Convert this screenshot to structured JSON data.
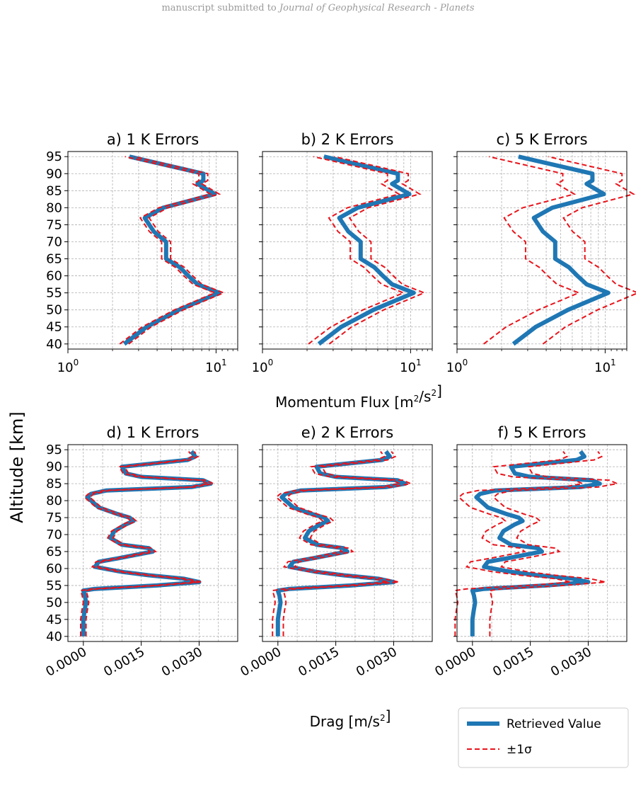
{
  "header": {
    "prefix": "manuscript submitted to ",
    "journal": "Journal of Geophysical Research - Planets"
  },
  "colors": {
    "retrieved": "#1f77b4",
    "sigma": "#e8141b",
    "grid": "#b0b0b0"
  },
  "figure": {
    "ylabel": "Altitude [km]",
    "top_xlabel": "Momentum Flux [m²/s²]",
    "bottom_xlabel": "Drag [m/s²]",
    "legend": {
      "retrieved": "Retrieved Value",
      "sigma": "±1σ",
      "placement": "lower-right"
    }
  },
  "chart_data": [
    {
      "type": "line",
      "panel": "a",
      "title": "a) 1 K Errors",
      "xscale": "log",
      "xlim": [
        1,
        14
      ],
      "xticks": [
        1,
        10
      ],
      "xticklabels": [
        "10^0",
        "10^1"
      ],
      "ylim": [
        38.5,
        96.5
      ],
      "yticks": [
        40,
        45,
        50,
        55,
        60,
        65,
        70,
        75,
        80,
        85,
        90,
        95
      ],
      "grid": true,
      "y": [
        40,
        45,
        50,
        55,
        57.5,
        60,
        62.5,
        65,
        70,
        73,
        77,
        80,
        84,
        87,
        88,
        90,
        95
      ],
      "retrieved": [
        2.4,
        3.4,
        5.6,
        10.5,
        7.5,
        6.5,
        5.7,
        4.6,
        4.6,
        3.8,
        3.3,
        4.4,
        9.8,
        7.5,
        8.2,
        8.2,
        2.6
      ],
      "sigma_spread": 0.03
    },
    {
      "type": "line",
      "panel": "b",
      "title": "b) 2 K Errors",
      "xscale": "log",
      "xlim": [
        1,
        14
      ],
      "xticks": [
        1,
        10
      ],
      "xticklabels": [
        "10^0",
        "10^1"
      ],
      "ylim": [
        38.5,
        96.5
      ],
      "yticks": [
        40,
        45,
        50,
        55,
        60,
        65,
        70,
        75,
        80,
        85,
        90,
        95
      ],
      "grid": true,
      "y": [
        40,
        45,
        50,
        55,
        57.5,
        60,
        62.5,
        65,
        70,
        73,
        77,
        80,
        84,
        87,
        88,
        90,
        95
      ],
      "retrieved": [
        2.4,
        3.4,
        5.6,
        10.5,
        7.5,
        6.5,
        5.7,
        4.6,
        4.6,
        3.8,
        3.3,
        4.4,
        9.8,
        7.5,
        8.2,
        8.2,
        2.6
      ],
      "sigma_spread": 0.07
    },
    {
      "type": "line",
      "panel": "c",
      "title": "c) 5 K Errors",
      "xscale": "log",
      "xlim": [
        1,
        14
      ],
      "xticks": [
        1,
        10
      ],
      "xticklabels": [
        "10^0",
        "10^1"
      ],
      "ylim": [
        38.5,
        96.5
      ],
      "yticks": [
        40,
        45,
        50,
        55,
        60,
        65,
        70,
        75,
        80,
        85,
        90,
        95
      ],
      "grid": true,
      "y": [
        40,
        45,
        50,
        55,
        57.5,
        60,
        62.5,
        65,
        70,
        73,
        77,
        80,
        84,
        87,
        88,
        90,
        95
      ],
      "retrieved": [
        2.4,
        3.4,
        5.6,
        10.5,
        7.5,
        6.5,
        5.7,
        4.6,
        4.6,
        3.8,
        3.3,
        4.4,
        9.8,
        7.5,
        8.2,
        8.2,
        2.6
      ],
      "sigma_spread": 0.2
    },
    {
      "type": "line",
      "panel": "d",
      "title": "d) 1 K Errors",
      "xscale": "linear",
      "xlim": [
        -0.0004,
        0.004
      ],
      "xticks": [
        0,
        0.0015,
        0.003
      ],
      "xticklabels": [
        "0.0000",
        "0.0015",
        "0.0030"
      ],
      "ylim": [
        38.5,
        96.5
      ],
      "yticks": [
        40,
        45,
        50,
        55,
        60,
        65,
        70,
        75,
        80,
        85,
        90,
        95
      ],
      "grid": true,
      "y": [
        40,
        45,
        47.5,
        50,
        52,
        53.5,
        54,
        55,
        56,
        57,
        58,
        59,
        60.5,
        62,
        63,
        65,
        66,
        67,
        69,
        71,
        73,
        74,
        75,
        76,
        78,
        79,
        81,
        82,
        83,
        84,
        85,
        86,
        87,
        88,
        90,
        92,
        93,
        94.5
      ],
      "retrieved": [
        0,
        0,
        3e-05,
        7e-05,
        4e-05,
        0,
        0.0003,
        0.0019,
        0.003,
        0.0026,
        0.0017,
        0.001,
        0.0003,
        0.0004,
        0.0009,
        0.0018,
        0.0017,
        0.001,
        0.0007,
        0.0008,
        0.0011,
        0.0013,
        0.0012,
        0.0009,
        0.0004,
        0.0003,
        0.0001,
        0.0002,
        0.0006,
        0.0028,
        0.0033,
        0.0031,
        0.0015,
        0.0011,
        0.001,
        0.0027,
        0.0029,
        0.0028
      ],
      "sigma_spread": 7e-05
    },
    {
      "type": "line",
      "panel": "e",
      "title": "e) 2 K Errors",
      "xscale": "linear",
      "xlim": [
        -0.0004,
        0.004
      ],
      "xticks": [
        0,
        0.0015,
        0.003
      ],
      "xticklabels": [
        "0.0000",
        "0.0015",
        "0.0030"
      ],
      "ylim": [
        38.5,
        96.5
      ],
      "yticks": [
        40,
        45,
        50,
        55,
        60,
        65,
        70,
        75,
        80,
        85,
        90,
        95
      ],
      "grid": true,
      "y": [
        40,
        45,
        47.5,
        50,
        52,
        53.5,
        54,
        55,
        56,
        57,
        58,
        59,
        60.5,
        62,
        63,
        65,
        66,
        67,
        69,
        71,
        73,
        74,
        75,
        76,
        78,
        79,
        81,
        82,
        83,
        84,
        85,
        86,
        87,
        88,
        90,
        92,
        93,
        94.5
      ],
      "retrieved": [
        0,
        0,
        3e-05,
        7e-05,
        4e-05,
        0,
        0.0003,
        0.0019,
        0.003,
        0.0026,
        0.0017,
        0.001,
        0.0003,
        0.0004,
        0.0009,
        0.0018,
        0.0017,
        0.001,
        0.0007,
        0.0008,
        0.0011,
        0.0013,
        0.0012,
        0.0009,
        0.0004,
        0.0003,
        0.0001,
        0.0002,
        0.0006,
        0.0028,
        0.0033,
        0.0031,
        0.0015,
        0.0011,
        0.001,
        0.0027,
        0.0029,
        0.0028
      ],
      "sigma_spread": 0.00014
    },
    {
      "type": "line",
      "panel": "f",
      "title": "f) 5 K Errors",
      "xscale": "linear",
      "xlim": [
        -0.0004,
        0.004
      ],
      "xticks": [
        0,
        0.0015,
        0.003
      ],
      "xticklabels": [
        "0.0000",
        "0.0015",
        "0.0030"
      ],
      "ylim": [
        38.5,
        96.5
      ],
      "yticks": [
        40,
        45,
        50,
        55,
        60,
        65,
        70,
        75,
        80,
        85,
        90,
        95
      ],
      "grid": true,
      "y": [
        40,
        45,
        47.5,
        50,
        52,
        53.5,
        54,
        55,
        56,
        57,
        58,
        59,
        60.5,
        62,
        63,
        65,
        66,
        67,
        69,
        71,
        73,
        74,
        75,
        76,
        78,
        79,
        81,
        82,
        83,
        84,
        85,
        86,
        87,
        88,
        90,
        92,
        93,
        94.5
      ],
      "retrieved": [
        0,
        0,
        3e-05,
        7e-05,
        4e-05,
        0,
        0.0003,
        0.0019,
        0.003,
        0.0026,
        0.0017,
        0.001,
        0.0003,
        0.0004,
        0.0009,
        0.0018,
        0.0017,
        0.001,
        0.0007,
        0.0008,
        0.0011,
        0.0013,
        0.0012,
        0.0009,
        0.0004,
        0.0003,
        0.0001,
        0.0002,
        0.0006,
        0.0028,
        0.0033,
        0.0031,
        0.0015,
        0.0011,
        0.001,
        0.0027,
        0.0029,
        0.0028
      ],
      "sigma_spread": 0.00045
    }
  ]
}
